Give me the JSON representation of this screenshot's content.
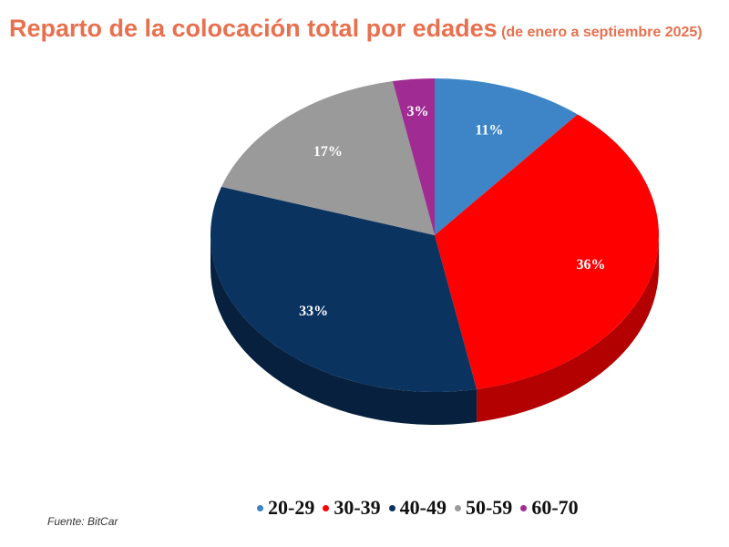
{
  "chart_data": {
    "type": "pie",
    "title": "Reparto de la colocación total por edades",
    "subtitle": "(de enero a septiembre 2025)",
    "categories": [
      "20-29",
      "30-39",
      "40-49",
      "50-59",
      "60-70"
    ],
    "values": [
      11,
      36,
      33,
      17,
      3
    ],
    "labels": [
      "11%",
      "36%",
      "33%",
      "17%",
      "3%"
    ],
    "colors": [
      "#3d85c6",
      "#ff0000",
      "#0b3360",
      "#9a9a9a",
      "#a02b93"
    ],
    "side_colors": [
      "#2a5f91",
      "#b30000",
      "#06203d",
      "#6e6e6e",
      "#701e66"
    ],
    "legend_position": "bottom",
    "source": "Fuente: BitCar"
  }
}
